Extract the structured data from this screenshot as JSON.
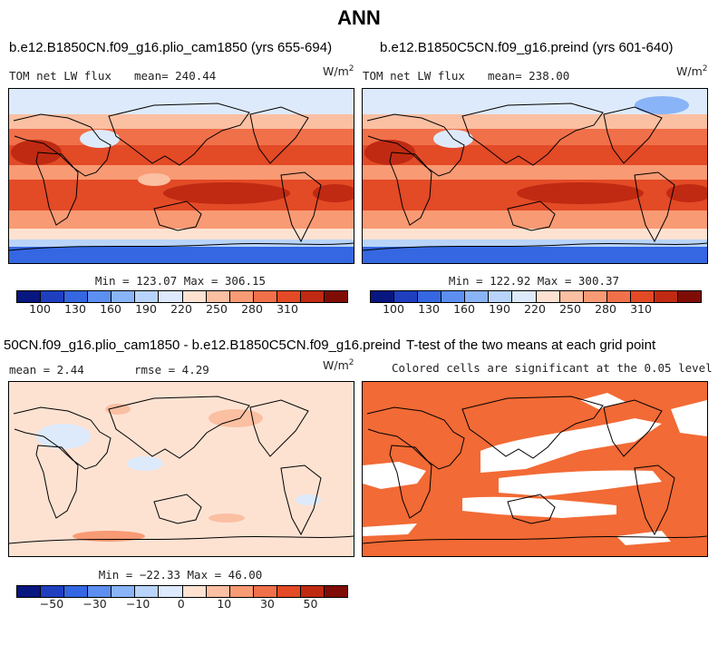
{
  "figure": {
    "title": "ANN"
  },
  "panels": [
    {
      "id": "top-left",
      "title": "b.e12.B1850CN.f09_g16.plio_cam1850 (yrs 655-694)",
      "variable": "TOM net LW flux",
      "stat": "mean= 240.44",
      "units": "W/m",
      "units_exp": "2",
      "minmax": "Min = 123.07 Max = 306.15",
      "colorbar_ticks": [
        "100",
        "130",
        "160",
        "190",
        "220",
        "250",
        "280",
        "310"
      ]
    },
    {
      "id": "top-right",
      "title": "b.e12.B1850C5CN.f09_g16.preind (yrs 601-640)",
      "variable": "TOM net LW flux",
      "stat": "mean= 238.00",
      "units": "W/m",
      "units_exp": "2",
      "minmax": "Min = 122.92 Max = 300.37",
      "colorbar_ticks": [
        "100",
        "130",
        "160",
        "190",
        "220",
        "250",
        "280",
        "310"
      ]
    },
    {
      "id": "bottom-left",
      "title": "50CN.f09_g16.plio_cam1850 - b.e12.B1850C5CN.f09_g16.preind",
      "stat_mean": "mean =   2.44",
      "stat_rmse": "rmse =   4.29",
      "units": "W/m",
      "units_exp": "2",
      "minmax": "Min = −22.33 Max =  46.00",
      "colorbar_ticks": [
        "−50",
        "−30",
        "−10",
        "0",
        "10",
        "30",
        "50"
      ]
    },
    {
      "id": "bottom-right",
      "title": "T-test of the two means at each grid point",
      "subtitle": "Colored cells are significant at the 0.05 level"
    }
  ],
  "colors": {
    "full_scale": [
      "#08167f",
      "#1f3fbf",
      "#3467e1",
      "#5c8ff0",
      "#8ab4f8",
      "#b8d4fa",
      "#ddeafb",
      "#fde2d2",
      "#fbbfa2",
      "#f89a74",
      "#f0704a",
      "#e34a26",
      "#c02a12",
      "#7f0d06"
    ],
    "diff_scale": [
      "#08167f",
      "#1f3fbf",
      "#3467e1",
      "#5c8ff0",
      "#8ab4f8",
      "#b8d4fa",
      "#ddeafb",
      "#fde2d2",
      "#fbbfa2",
      "#f89a74",
      "#f0704a",
      "#e34a26",
      "#c02a12",
      "#7f0d06"
    ],
    "significance": "#f26a35"
  }
}
